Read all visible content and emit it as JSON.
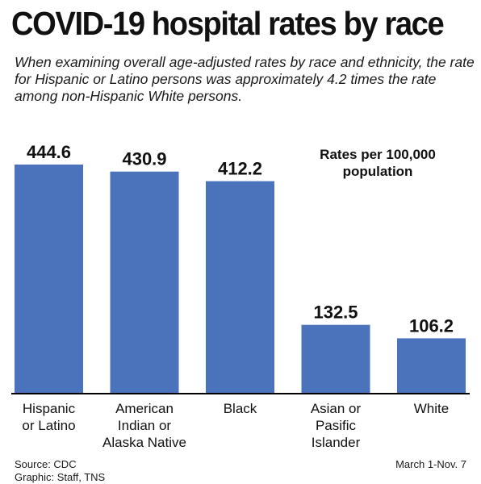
{
  "header": {
    "title": "COVID-19 hospital rates by race",
    "subtitle": "When examining overall age-adjusted rates by race and ethnicity, the rate for Hispanic or Latino persons was approximately 4.2 times the rate among non-Hispanic White persons."
  },
  "chart_data": {
    "type": "bar",
    "categories": [
      [
        "Hispanic",
        "or Latino"
      ],
      [
        "American",
        "Indian or",
        "Alaska Native"
      ],
      [
        "Black"
      ],
      [
        "Asian or",
        "Pasific",
        "Islander"
      ],
      [
        "White"
      ]
    ],
    "values": [
      444.6,
      430.9,
      412.2,
      132.5,
      106.2
    ],
    "value_labels": [
      "444.6",
      "430.9",
      "412.2",
      "132.5",
      "106.2"
    ],
    "units_note": "Rates per 100,000 population",
    "ylim": [
      0,
      444.6
    ],
    "grid": false,
    "colors": {
      "bar": "#4a73bb",
      "axis": "#000000"
    }
  },
  "footer": {
    "source_line1": "Source: CDC",
    "source_line2": "Graphic: Staff, TNS",
    "date_range": "March 1-Nov. 7"
  }
}
